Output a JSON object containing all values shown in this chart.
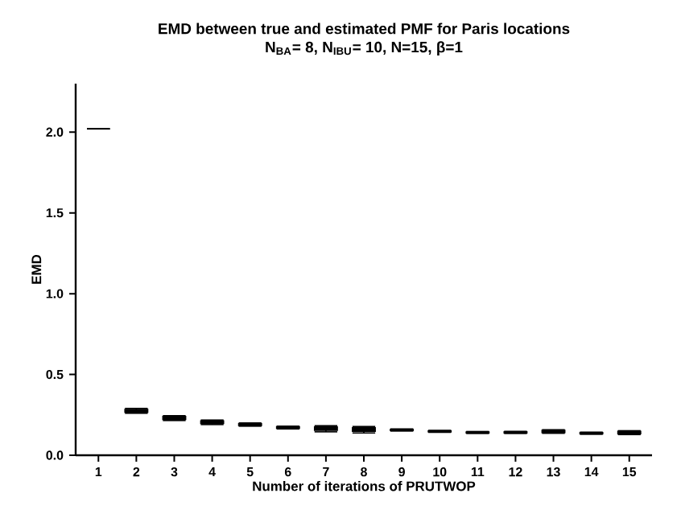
{
  "chart_data": {
    "type": "box",
    "title": "EMD between true and estimated PMF for Paris locations",
    "subtitle": "N$_{BA}$= 8, N$_{IBU}$= 10, N=15, β=1",
    "xlabel": "Number of iterations of PRUTWOP",
    "ylabel": "EMD",
    "categories": [
      "1",
      "2",
      "3",
      "4",
      "5",
      "6",
      "7",
      "8",
      "9",
      "10",
      "11",
      "12",
      "13",
      "14",
      "15"
    ],
    "color": "#000000",
    "ylim": [
      0,
      2.3
    ],
    "yticks": [
      {
        "value": 0,
        "label": "0.0"
      },
      {
        "value": 0.5,
        "label": "0.5"
      },
      {
        "value": 1.0,
        "label": "1.0"
      },
      {
        "value": 1.5,
        "label": "1.5"
      },
      {
        "value": 2.0,
        "label": "2.0"
      }
    ],
    "grid": false,
    "boxes": [
      {
        "low": 2.02,
        "q1": 2.02,
        "median": 2.02,
        "q3": 2.02,
        "high": 2.02
      },
      {
        "low": 0.26,
        "q1": 0.266,
        "median": 0.275,
        "q3": 0.283,
        "high": 0.29
      },
      {
        "low": 0.215,
        "q1": 0.222,
        "median": 0.23,
        "q3": 0.24,
        "high": 0.245
      },
      {
        "low": 0.19,
        "q1": 0.197,
        "median": 0.205,
        "q3": 0.212,
        "high": 0.218
      },
      {
        "low": 0.18,
        "q1": 0.185,
        "median": 0.19,
        "q3": 0.195,
        "high": 0.2
      },
      {
        "low": 0.163,
        "q1": 0.167,
        "median": 0.172,
        "q3": 0.177,
        "high": 0.18
      },
      {
        "low": 0.145,
        "q1": 0.155,
        "median": 0.165,
        "q3": 0.175,
        "high": 0.183
      },
      {
        "low": 0.138,
        "q1": 0.148,
        "median": 0.16,
        "q3": 0.17,
        "high": 0.178
      },
      {
        "low": 0.15,
        "q1": 0.153,
        "median": 0.157,
        "q3": 0.16,
        "high": 0.163
      },
      {
        "low": 0.142,
        "q1": 0.145,
        "median": 0.148,
        "q3": 0.151,
        "high": 0.154
      },
      {
        "low": 0.135,
        "q1": 0.138,
        "median": 0.141,
        "q3": 0.144,
        "high": 0.147
      },
      {
        "low": 0.135,
        "q1": 0.138,
        "median": 0.141,
        "q3": 0.145,
        "high": 0.148
      },
      {
        "low": 0.136,
        "q1": 0.141,
        "median": 0.147,
        "q3": 0.154,
        "high": 0.158
      },
      {
        "low": 0.13,
        "q1": 0.133,
        "median": 0.136,
        "q3": 0.14,
        "high": 0.143
      },
      {
        "low": 0.128,
        "q1": 0.134,
        "median": 0.14,
        "q3": 0.148,
        "high": 0.152
      }
    ]
  }
}
